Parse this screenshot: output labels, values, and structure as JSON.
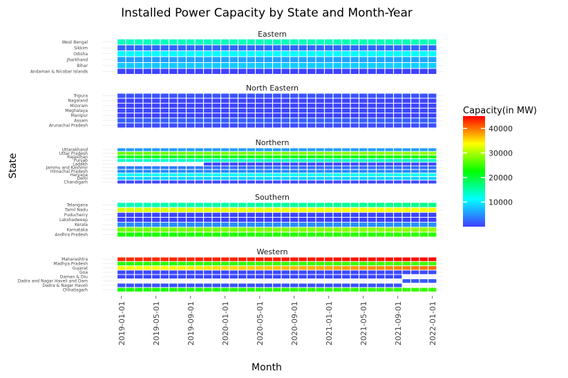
{
  "chart_data": {
    "type": "heatmap",
    "title": "Installed Power Capacity by State and Month-Year",
    "xlabel": "Month",
    "ylabel": "State",
    "x_tick_labels": [
      "2019-01-01",
      "2019-05-01",
      "2019-09-01",
      "2020-01-01",
      "2020-05-01",
      "2020-09-01",
      "2021-01-01",
      "2021-05-01",
      "2021-09-01",
      "2022-01-01"
    ],
    "x_start": "2019-01",
    "x_end": "2022-01",
    "legend": {
      "title": "Capacity(in MW)",
      "position": "right",
      "min": 0,
      "max": 45000,
      "ticks": [
        10000,
        20000,
        30000,
        40000
      ],
      "tick_labels": [
        "10000",
        "20000",
        "30000",
        "40000"
      ],
      "gradient": [
        "#3f3fff",
        "#00ffff",
        "#00ff00",
        "#ffff00",
        "#ff0000"
      ]
    },
    "panels": [
      {
        "name": "Eastern",
        "states": [
          {
            "name": "West Bengal",
            "start": 14000,
            "end": 14500
          },
          {
            "name": "Sikkim",
            "start": 2200,
            "end": 2300
          },
          {
            "name": "Odisha",
            "start": 11000,
            "end": 11500
          },
          {
            "name": "Jharkhand",
            "start": 5500,
            "end": 6000
          },
          {
            "name": "Bihar",
            "start": 8000,
            "end": 8500
          },
          {
            "name": "Andaman & Nicobar Islands",
            "start": 150,
            "end": 150
          }
        ]
      },
      {
        "name": "North Eastern",
        "states": [
          {
            "name": "Tripura",
            "start": 1100,
            "end": 1100
          },
          {
            "name": "Nagaland",
            "start": 200,
            "end": 250
          },
          {
            "name": "Mizoram",
            "start": 300,
            "end": 350
          },
          {
            "name": "Meghalaya",
            "start": 600,
            "end": 600
          },
          {
            "name": "Manipur",
            "start": 250,
            "end": 250
          },
          {
            "name": "Assam",
            "start": 1900,
            "end": 2000
          },
          {
            "name": "Arunachal Pradesh",
            "start": 800,
            "end": 800
          }
        ]
      },
      {
        "name": "Northern",
        "states": [
          {
            "name": "Uttarakhand",
            "start": 5500,
            "end": 5800
          },
          {
            "name": "Uttar Pradesh",
            "start": 27000,
            "end": 29000
          },
          {
            "name": "Rajasthan",
            "start": 21000,
            "end": 23000
          },
          {
            "name": "Punjab",
            "start": 13500,
            "end": 14000
          },
          {
            "name": "Ladakh",
            "start": 0,
            "end": 200,
            "first_month": "2019-11"
          },
          {
            "name": "Jammu and Kashmir",
            "start": 3600,
            "end": 3700,
            "last_high": "2019-10",
            "later": 2800
          },
          {
            "name": "Himachal Pradesh",
            "start": 4500,
            "end": 4500
          },
          {
            "name": "Haryana",
            "start": 11500,
            "end": 12000
          },
          {
            "name": "Delhi",
            "start": 8500,
            "end": 8500
          },
          {
            "name": "Chandigarh",
            "start": 300,
            "end": 350
          }
        ]
      },
      {
        "name": "Southern",
        "states": [
          {
            "name": "Telangana",
            "start": 14500,
            "end": 16500
          },
          {
            "name": "Tamil Nadu",
            "start": 32000,
            "end": 34000
          },
          {
            "name": "Puducherry",
            "start": 450,
            "end": 450
          },
          {
            "name": "Lakshadweep",
            "start": 100,
            "end": 100
          },
          {
            "name": "Kerala",
            "start": 4500,
            "end": 4800
          },
          {
            "name": "Karnataka",
            "start": 27500,
            "end": 29000
          },
          {
            "name": "Andhra Pradesh",
            "start": 23500,
            "end": 24500
          }
        ]
      },
      {
        "name": "Western",
        "states": [
          {
            "name": "Maharashtra",
            "start": 43000,
            "end": 44500
          },
          {
            "name": "Madhya Pradesh",
            "start": 24000,
            "end": 25500
          },
          {
            "name": "Gujarat",
            "start": 33000,
            "end": 40000
          },
          {
            "name": "Goa",
            "start": 550,
            "end": 600
          },
          {
            "name": "Daman & Diu",
            "start": 450,
            "end": 450,
            "last_month": "2021-09"
          },
          {
            "name": "Dadra and Nagar Haveli and Daman and Diu",
            "start": 1500,
            "end": 1500,
            "first_month": "2021-10"
          },
          {
            "name": "Dadra & Nagar Haveli",
            "start": 1250,
            "end": 1250,
            "last_month": "2021-09"
          },
          {
            "name": "Chhatisgarh",
            "start": 23500,
            "end": 25000
          }
        ]
      }
    ]
  },
  "state_labels": {
    "eastern": [
      "West Bengal",
      "Sikkim",
      "Odisha",
      "Jharkhand",
      "Bihar",
      "Andaman & Nicobar Islands"
    ],
    "north_eastern": [
      "Tripura",
      "Nagaland",
      "Mizoram",
      "Meghalaya",
      "Manipur",
      "Assam",
      "Arunachal Pradesh"
    ],
    "northern": [
      "Uttarakhand",
      "Uttar Pradesh",
      "Rajasthan",
      "Punjab",
      "Ladakh",
      "Jammu and Kashmir",
      "Himachal Pradesh",
      "Haryana",
      "Delhi",
      "Chandigarh"
    ],
    "southern": [
      "Telangana",
      "Tamil Nadu",
      "Puducherry",
      "Lakshadweep",
      "Kerala",
      "Karnataka",
      "Andhra Pradesh"
    ],
    "western": [
      "Maharashtra",
      "Madhya Pradesh",
      "Gujarat",
      "Goa",
      "Daman & Diu",
      "Dadra and Nagar Haveli and Dam",
      "Dadra & Nagar Haveli",
      "Chhatisgarh"
    ]
  }
}
